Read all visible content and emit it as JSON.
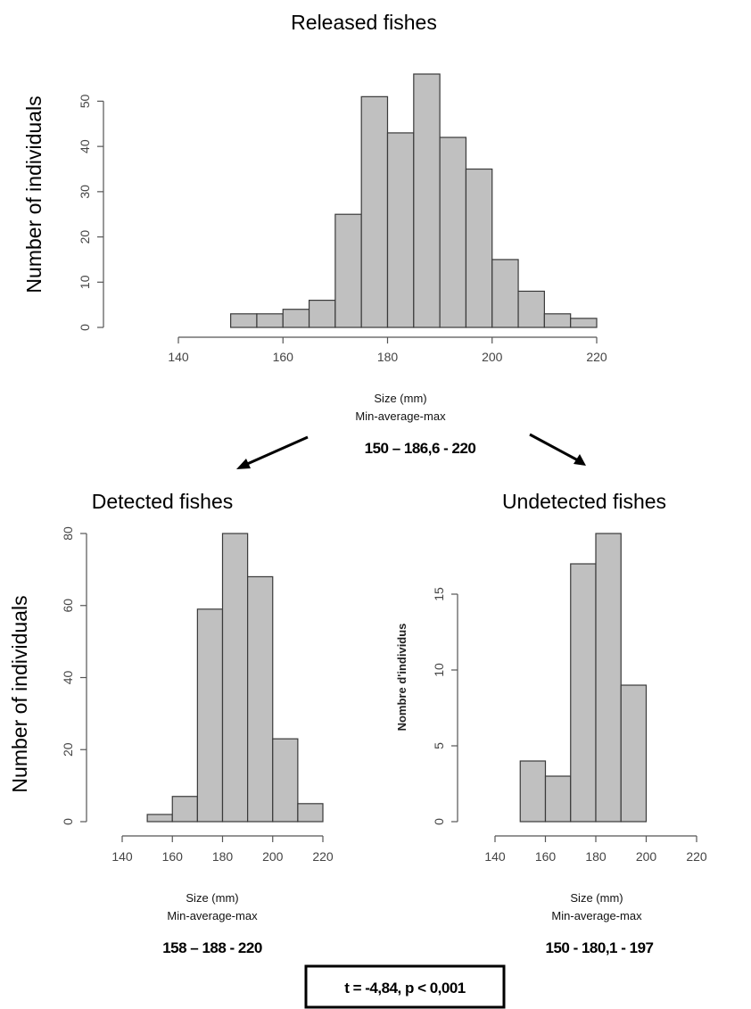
{
  "chart_data": [
    {
      "type": "bar",
      "title": "Released fishes",
      "ylabel": "Number of individuals",
      "xlabel": "Size (mm)",
      "sublabel": "Min-average-max",
      "stats": "150 – 186,6 - 220",
      "bin_edges": [
        150,
        155,
        160,
        165,
        170,
        175,
        180,
        185,
        190,
        195,
        200,
        205,
        210,
        215,
        220
      ],
      "values": [
        3,
        3,
        4,
        6,
        25,
        51,
        43,
        56,
        42,
        35,
        15,
        8,
        3,
        2
      ],
      "xticks": [
        140,
        160,
        180,
        200,
        220
      ],
      "yticks": [
        0,
        10,
        20,
        30,
        40,
        50
      ],
      "xlim": [
        140,
        220
      ],
      "ylim": [
        0,
        56
      ]
    },
    {
      "type": "bar",
      "title": "Detected fishes",
      "ylabel": "Number of individuals",
      "xlabel": "Size (mm)",
      "sublabel": "Min-average-max",
      "stats": "158 – 188 - 220",
      "bin_edges": [
        150,
        160,
        170,
        180,
        190,
        200,
        210,
        220
      ],
      "values": [
        2,
        7,
        59,
        80,
        68,
        23,
        5
      ],
      "xticks": [
        140,
        160,
        180,
        200,
        220
      ],
      "yticks": [
        0,
        20,
        40,
        60,
        80
      ],
      "xlim": [
        140,
        220
      ],
      "ylim": [
        0,
        80
      ]
    },
    {
      "type": "bar",
      "title": "Undetected  fishes",
      "ylabel": "Nombre d'individus",
      "xlabel": "Size (mm)",
      "sublabel": "Min-average-max",
      "stats": "150 - 180,1 - 197",
      "bin_edges": [
        150,
        160,
        170,
        180,
        190,
        200
      ],
      "values": [
        4,
        3,
        17,
        19,
        9
      ],
      "xticks": [
        140,
        160,
        180,
        200,
        220
      ],
      "yticks": [
        0,
        5,
        10,
        15
      ],
      "xlim": [
        140,
        220
      ],
      "ylim": [
        0,
        19
      ]
    }
  ],
  "test_result": "t = -4,84, p < 0,001",
  "colors": {
    "bar_fill": "#c0c0c0",
    "bar_stroke": "#3a3a3a",
    "axis": "#555555"
  }
}
